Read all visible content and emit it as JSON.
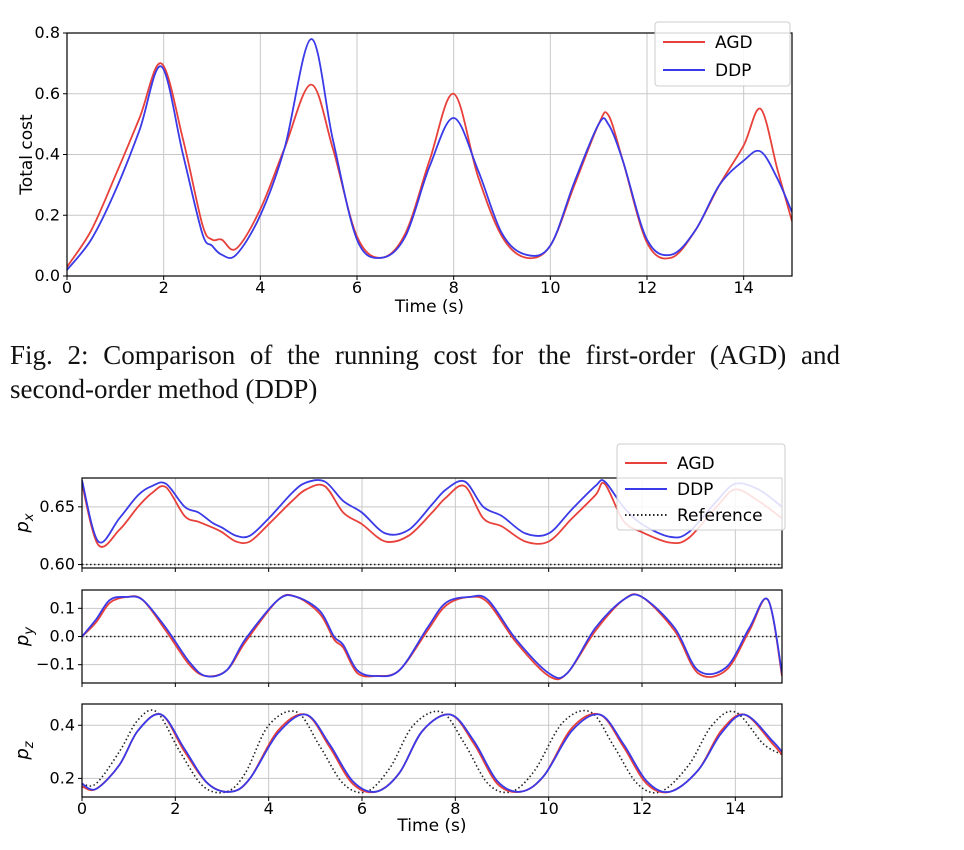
{
  "figure2": {
    "caption": "Fig. 2: Comparison of the running cost for the first-order (AGD) and second-order method (DDP)",
    "colors": {
      "AGD": "#e8403a",
      "DDP": "#3a3ae8",
      "Reference": "#222222",
      "grid": "#c8c8c8"
    },
    "chart_data": {
      "type": "line",
      "xlabel": "Time (s)",
      "ylabel": "Total cost",
      "xlim": [
        0,
        15
      ],
      "ylim": [
        0,
        0.8
      ],
      "xticks": [
        0,
        2,
        4,
        6,
        8,
        10,
        12,
        14
      ],
      "yticks": [
        0.0,
        0.2,
        0.4,
        0.6,
        0.8
      ],
      "ytick_labels": [
        "0.0",
        "0.2",
        "0.4",
        "0.6",
        "0.8"
      ],
      "grid": true,
      "legend": "top-right",
      "series": [
        {
          "name": "AGD",
          "x": [
            0,
            0.5,
            1,
            1.5,
            1.95,
            2.4,
            2.8,
            3.0,
            3.2,
            3.5,
            4.0,
            4.5,
            5.05,
            5.5,
            6.0,
            6.5,
            7.0,
            7.5,
            8.0,
            8.5,
            9.0,
            9.5,
            10.0,
            10.5,
            11.0,
            11.2,
            11.5,
            12.0,
            12.5,
            13.0,
            13.5,
            14.0,
            14.35,
            14.7,
            15.0
          ],
          "y": [
            0.03,
            0.15,
            0.33,
            0.52,
            0.7,
            0.45,
            0.17,
            0.12,
            0.12,
            0.09,
            0.22,
            0.42,
            0.63,
            0.42,
            0.13,
            0.06,
            0.14,
            0.38,
            0.6,
            0.33,
            0.13,
            0.06,
            0.1,
            0.3,
            0.5,
            0.53,
            0.38,
            0.11,
            0.06,
            0.15,
            0.3,
            0.43,
            0.55,
            0.35,
            0.18
          ]
        },
        {
          "name": "DDP",
          "x": [
            0,
            0.5,
            1,
            1.5,
            1.95,
            2.4,
            2.8,
            3.0,
            3.2,
            3.5,
            4.0,
            4.5,
            5.05,
            5.5,
            6.0,
            6.5,
            7.0,
            7.5,
            8.0,
            8.5,
            9.0,
            9.5,
            10.0,
            10.5,
            11.0,
            11.2,
            11.5,
            12.0,
            12.5,
            13.0,
            13.5,
            14.0,
            14.35,
            14.7,
            15.0
          ],
          "y": [
            0.02,
            0.12,
            0.28,
            0.48,
            0.69,
            0.4,
            0.14,
            0.1,
            0.07,
            0.07,
            0.2,
            0.42,
            0.78,
            0.45,
            0.12,
            0.06,
            0.13,
            0.36,
            0.52,
            0.35,
            0.14,
            0.07,
            0.1,
            0.31,
            0.5,
            0.5,
            0.38,
            0.12,
            0.07,
            0.15,
            0.3,
            0.38,
            0.41,
            0.32,
            0.21
          ]
        }
      ]
    }
  },
  "figure3": {
    "chart_data": [
      {
        "type": "line",
        "ylabel": "p_x",
        "ylabel_main": "p",
        "ylabel_sub": "x",
        "xlim": [
          0,
          15
        ],
        "ylim": [
          0.597,
          0.675
        ],
        "xticks": [
          0,
          2,
          4,
          6,
          8,
          10,
          12,
          14
        ],
        "yticks": [
          0.6,
          0.65
        ],
        "ytick_labels": [
          "0.60",
          "0.65"
        ],
        "grid": true,
        "legend": "top-right",
        "legend_entries": [
          "AGD",
          "DDP",
          "Reference"
        ],
        "series": [
          {
            "name": "AGD",
            "x": [
              0,
              0.35,
              0.8,
              1.2,
              1.5,
              1.8,
              2.2,
              2.5,
              2.8,
              3.0,
              3.3,
              3.6,
              4.0,
              4.5,
              4.8,
              5.2,
              5.6,
              6.0,
              6.5,
              7.0,
              7.5,
              7.8,
              8.2,
              8.6,
              9.0,
              9.5,
              10.0,
              10.5,
              11.0,
              11.2,
              11.6,
              12.0,
              12.6,
              13.0,
              13.6,
              14.0,
              14.5,
              15.0
            ],
            "y": [
              0.67,
              0.617,
              0.63,
              0.65,
              0.662,
              0.667,
              0.642,
              0.637,
              0.632,
              0.628,
              0.62,
              0.62,
              0.635,
              0.655,
              0.665,
              0.668,
              0.645,
              0.635,
              0.62,
              0.625,
              0.645,
              0.658,
              0.668,
              0.64,
              0.633,
              0.62,
              0.62,
              0.64,
              0.66,
              0.67,
              0.638,
              0.628,
              0.619,
              0.623,
              0.65,
              0.665,
              0.655,
              0.64
            ]
          },
          {
            "name": "DDP",
            "x": [
              0,
              0.35,
              0.8,
              1.2,
              1.5,
              1.8,
              2.2,
              2.5,
              2.8,
              3.0,
              3.3,
              3.6,
              4.0,
              4.5,
              4.8,
              5.2,
              5.6,
              6.0,
              6.5,
              7.0,
              7.5,
              7.8,
              8.2,
              8.6,
              9.0,
              9.5,
              10.0,
              10.5,
              11.0,
              11.2,
              11.6,
              12.0,
              12.6,
              13.0,
              13.6,
              14.0,
              14.5,
              15.0
            ],
            "y": [
              0.673,
              0.62,
              0.64,
              0.66,
              0.668,
              0.67,
              0.65,
              0.645,
              0.636,
              0.632,
              0.625,
              0.625,
              0.64,
              0.662,
              0.671,
              0.672,
              0.655,
              0.645,
              0.627,
              0.63,
              0.652,
              0.665,
              0.672,
              0.65,
              0.642,
              0.627,
              0.627,
              0.648,
              0.668,
              0.672,
              0.65,
              0.635,
              0.624,
              0.628,
              0.655,
              0.67,
              0.665,
              0.65
            ]
          },
          {
            "name": "Reference",
            "x": [
              0,
              15
            ],
            "y": [
              0.6,
              0.6
            ]
          }
        ]
      },
      {
        "type": "line",
        "ylabel": "p_y",
        "ylabel_main": "p",
        "ylabel_sub": "y",
        "xlim": [
          0,
          15
        ],
        "ylim": [
          -0.165,
          0.165
        ],
        "xticks": [
          0,
          2,
          4,
          6,
          8,
          10,
          12,
          14
        ],
        "yticks": [
          -0.1,
          0.0,
          0.1
        ],
        "ytick_labels": [
          "−0.1",
          "0.0",
          "0.1"
        ],
        "grid": true,
        "series": [
          {
            "name": "AGD",
            "x": [
              0,
              0.3,
              0.6,
              0.95,
              1.3,
              1.8,
              2.3,
              2.65,
              3.1,
              3.5,
              4.2,
              4.6,
              5.1,
              5.6,
              5.4,
              5.9,
              6.3,
              6.8,
              7.4,
              7.8,
              8.3,
              8.7,
              9.3,
              10.0,
              10.4,
              11.0,
              11.6,
              12.0,
              12.7,
              13.2,
              13.8,
              14.3,
              14.7,
              15.0
            ],
            "y": [
              0.0,
              0.05,
              0.12,
              0.14,
              0.13,
              0.02,
              -0.1,
              -0.14,
              -0.12,
              -0.02,
              0.13,
              0.14,
              0.08,
              -0.04,
              -0.01,
              -0.13,
              -0.14,
              -0.12,
              0.02,
              0.11,
              0.14,
              0.12,
              -0.02,
              -0.14,
              -0.13,
              0.02,
              0.13,
              0.14,
              0.02,
              -0.13,
              -0.12,
              0.02,
              0.13,
              -0.14
            ]
          },
          {
            "name": "DDP",
            "x": [
              0,
              0.3,
              0.6,
              0.95,
              1.3,
              1.8,
              2.3,
              2.65,
              3.1,
              3.5,
              4.2,
              4.6,
              5.1,
              5.6,
              5.4,
              5.9,
              6.3,
              6.8,
              7.4,
              7.8,
              8.3,
              8.7,
              9.3,
              10.0,
              10.4,
              11.0,
              11.6,
              12.0,
              12.7,
              13.2,
              13.8,
              14.3,
              14.7,
              15.0
            ],
            "y": [
              0.0,
              0.06,
              0.13,
              0.14,
              0.13,
              0.03,
              -0.09,
              -0.14,
              -0.12,
              -0.01,
              0.13,
              0.14,
              0.09,
              -0.03,
              0.0,
              -0.12,
              -0.14,
              -0.12,
              0.03,
              0.12,
              0.14,
              0.13,
              -0.01,
              -0.13,
              -0.13,
              0.03,
              0.13,
              0.14,
              0.03,
              -0.12,
              -0.11,
              0.03,
              0.13,
              -0.13
            ]
          },
          {
            "name": "Reference",
            "x": [
              0,
              15
            ],
            "y": [
              0.0,
              0.0
            ]
          }
        ]
      },
      {
        "type": "line",
        "ylabel": "p_z",
        "ylabel_main": "p",
        "ylabel_sub": "z",
        "xlim": [
          0,
          15
        ],
        "ylim": [
          0.13,
          0.48
        ],
        "xticks": [
          0,
          2,
          4,
          6,
          8,
          10,
          12,
          14
        ],
        "xtick_labels": [
          "0",
          "2",
          "4",
          "6",
          "8",
          "10",
          "12",
          "14"
        ],
        "yticks": [
          0.2,
          0.4
        ],
        "ytick_labels": [
          "0.2",
          "0.4"
        ],
        "xlabel": "Time (s)",
        "grid": true,
        "series": [
          {
            "name": "AGD",
            "x": [
              0,
              0.3,
              0.8,
              1.2,
              1.7,
              2.2,
              2.7,
              3.2,
              3.6,
              4.2,
              4.8,
              5.3,
              5.8,
              6.3,
              6.8,
              7.3,
              7.9,
              8.4,
              8.9,
              9.4,
              9.9,
              10.5,
              11.1,
              11.6,
              12.1,
              12.6,
              13.2,
              13.7,
              14.2,
              14.8,
              15.0
            ],
            "y": [
              0.17,
              0.16,
              0.25,
              0.38,
              0.44,
              0.3,
              0.18,
              0.15,
              0.2,
              0.38,
              0.44,
              0.32,
              0.18,
              0.15,
              0.22,
              0.38,
              0.44,
              0.33,
              0.18,
              0.15,
              0.21,
              0.39,
              0.44,
              0.32,
              0.18,
              0.15,
              0.23,
              0.38,
              0.44,
              0.33,
              0.29
            ]
          },
          {
            "name": "DDP",
            "x": [
              0,
              0.3,
              0.8,
              1.2,
              1.7,
              2.2,
              2.7,
              3.2,
              3.6,
              4.2,
              4.8,
              5.3,
              5.8,
              6.3,
              6.8,
              7.3,
              7.9,
              8.4,
              8.9,
              9.4,
              9.9,
              10.5,
              11.1,
              11.6,
              12.1,
              12.6,
              13.2,
              13.7,
              14.2,
              14.8,
              15.0
            ],
            "y": [
              0.18,
              0.16,
              0.25,
              0.38,
              0.44,
              0.31,
              0.18,
              0.15,
              0.2,
              0.37,
              0.44,
              0.33,
              0.19,
              0.15,
              0.22,
              0.38,
              0.44,
              0.34,
              0.19,
              0.15,
              0.21,
              0.38,
              0.44,
              0.33,
              0.19,
              0.15,
              0.23,
              0.37,
              0.44,
              0.34,
              0.3
            ]
          },
          {
            "name": "Reference",
            "x": [
              0,
              0.3,
              0.8,
              1.2,
              1.6,
              2.1,
              2.6,
              3.1,
              3.5,
              4.0,
              4.6,
              5.1,
              5.6,
              6.1,
              6.6,
              7.1,
              7.7,
              8.2,
              8.7,
              9.2,
              9.7,
              10.3,
              10.9,
              11.4,
              11.9,
              12.4,
              13.0,
              13.5,
              14.0,
              14.6,
              15.0
            ],
            "y": [
              0.18,
              0.18,
              0.3,
              0.42,
              0.45,
              0.3,
              0.17,
              0.15,
              0.22,
              0.4,
              0.45,
              0.32,
              0.18,
              0.15,
              0.24,
              0.4,
              0.45,
              0.33,
              0.18,
              0.15,
              0.23,
              0.41,
              0.45,
              0.32,
              0.18,
              0.15,
              0.25,
              0.4,
              0.45,
              0.33,
              0.29
            ]
          }
        ]
      }
    ]
  }
}
